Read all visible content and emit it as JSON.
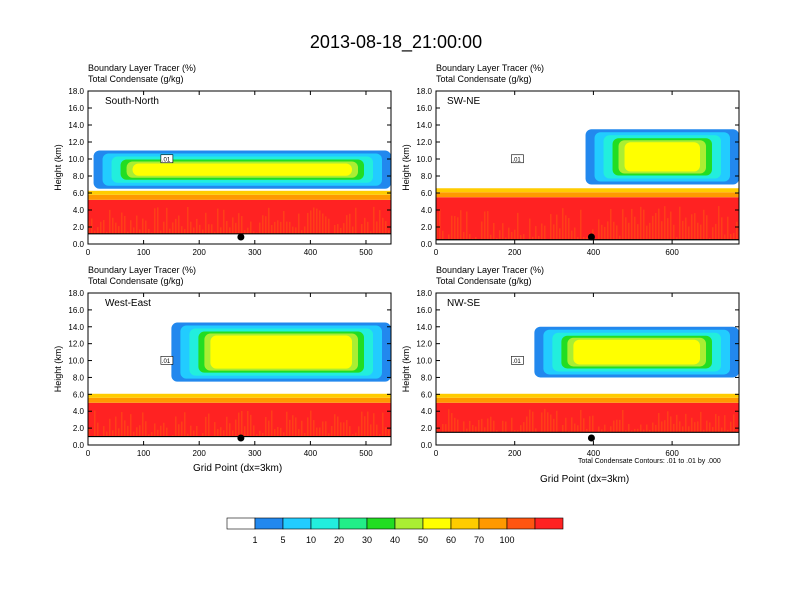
{
  "title": "2013-08-18_21:00:00",
  "subtitle_lines": [
    "Boundary Layer Tracer   (%)",
    "Total Condensate   (g/kg)"
  ],
  "ylabel": "Height (km)",
  "xlabel": "Grid Point (dx=3km)",
  "contour_note": "Total Condensate Contours: .01 to .01 by .000",
  "contour_label": ".01",
  "colorbar": {
    "colors": [
      "#ffffff",
      "#2288ee",
      "#22ccff",
      "#22eedd",
      "#22ee88",
      "#22dd22",
      "#aaee33",
      "#ffff00",
      "#ffcc00",
      "#ff9900",
      "#ff5511",
      "#ff2222"
    ],
    "labels": [
      "1",
      "5",
      "10",
      "20",
      "30",
      "40",
      "50",
      "60",
      "70",
      "100"
    ]
  },
  "chart_data": [
    {
      "type": "heatmap",
      "name": "South-North",
      "xlim": [
        0,
        545
      ],
      "ylim": [
        0,
        18
      ],
      "xticks": [
        "0",
        "100",
        "200",
        "300",
        "400",
        "500"
      ],
      "yticks": [
        "0.0",
        "2.0",
        "4.0",
        "6.0",
        "8.0",
        "10.0",
        "12.0",
        "14.0",
        "16.0",
        "18.0"
      ],
      "marker_x": 275,
      "ground_km": 1.2,
      "pbl_top_km": 5.2,
      "cloud_layers": [
        {
          "x_start": 10,
          "x_end": 545,
          "base_km": 6.5,
          "top_km": 11.0
        }
      ]
    },
    {
      "type": "heatmap",
      "name": "SW-NE",
      "xlim": [
        0,
        770
      ],
      "ylim": [
        0,
        18
      ],
      "xticks": [
        "0",
        "200",
        "400",
        "600"
      ],
      "yticks": [
        "0.0",
        "2.0",
        "4.0",
        "6.0",
        "8.0",
        "10.0",
        "12.0",
        "14.0",
        "16.0",
        "18.0"
      ],
      "marker_x": 395,
      "ground_km": 0.5,
      "pbl_top_km": 5.5,
      "cloud_layers": [
        {
          "x_start": 380,
          "x_end": 770,
          "base_km": 7.0,
          "top_km": 13.5
        }
      ]
    },
    {
      "type": "heatmap",
      "name": "West-East",
      "xlim": [
        0,
        545
      ],
      "ylim": [
        0,
        18
      ],
      "xticks": [
        "0",
        "100",
        "200",
        "300",
        "400",
        "500"
      ],
      "yticks": [
        "0.0",
        "2.0",
        "4.0",
        "6.0",
        "8.0",
        "10.0",
        "12.0",
        "14.0",
        "16.0",
        "18.0"
      ],
      "marker_x": 275,
      "ground_km": 1.0,
      "pbl_top_km": 5.0,
      "cloud_layers": [
        {
          "x_start": 150,
          "x_end": 545,
          "base_km": 7.5,
          "top_km": 14.5
        }
      ]
    },
    {
      "type": "heatmap",
      "name": "NW-SE",
      "xlim": [
        0,
        770
      ],
      "ylim": [
        0,
        18
      ],
      "xticks": [
        "0",
        "200",
        "400",
        "600"
      ],
      "yticks": [
        "0.0",
        "2.0",
        "4.0",
        "6.0",
        "8.0",
        "10.0",
        "12.0",
        "14.0",
        "16.0",
        "18.0"
      ],
      "marker_x": 395,
      "ground_km": 1.5,
      "pbl_top_km": 5.0,
      "cloud_layers": [
        {
          "x_start": 250,
          "x_end": 770,
          "base_km": 8.0,
          "top_km": 14.0
        }
      ]
    }
  ]
}
